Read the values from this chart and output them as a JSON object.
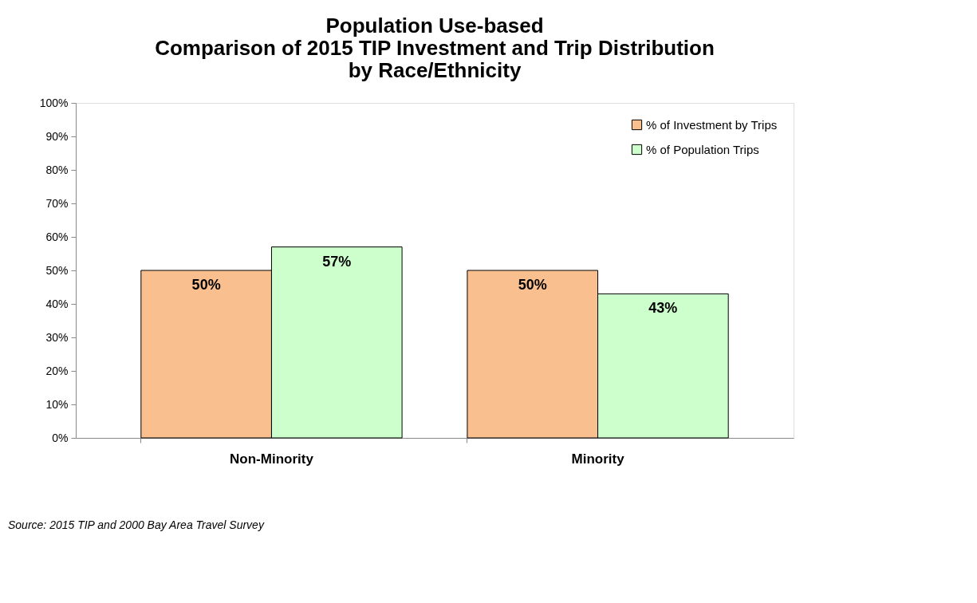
{
  "chart_data": {
    "type": "bar",
    "title": [
      "Population Use-based",
      "Comparison of 2015 TIP Investment and Trip Distribution",
      "by Race/Ethnicity"
    ],
    "categories": [
      "Non-Minority",
      "Minority"
    ],
    "series": [
      {
        "name": "% of Investment by Trips",
        "color": "#f9bf8f",
        "values": [
          50,
          50
        ],
        "value_labels": [
          "50%",
          "50%"
        ]
      },
      {
        "name": "% of Population Trips",
        "color": "#ccffcc",
        "values": [
          57,
          43
        ],
        "value_labels": [
          "57%",
          "43%"
        ]
      }
    ],
    "ylim": [
      0,
      100
    ],
    "yticks": [
      {
        "value": 0,
        "label": "0%"
      },
      {
        "value": 10,
        "label": "10%"
      },
      {
        "value": 20,
        "label": "20%"
      },
      {
        "value": 30,
        "label": "30%"
      },
      {
        "value": 40,
        "label": "40%"
      },
      {
        "value": 50,
        "label": "50%"
      },
      {
        "value": 60,
        "label": "60%"
      },
      {
        "value": 70,
        "label": "70%"
      },
      {
        "value": 80,
        "label": "80%"
      },
      {
        "value": 90,
        "label": "90%"
      },
      {
        "value": 100,
        "label": "100%"
      }
    ],
    "legend": "top right",
    "grid": false,
    "annotations": [
      "Source: 2015 TIP and 2000 Bay Area Travel Survey"
    ]
  }
}
